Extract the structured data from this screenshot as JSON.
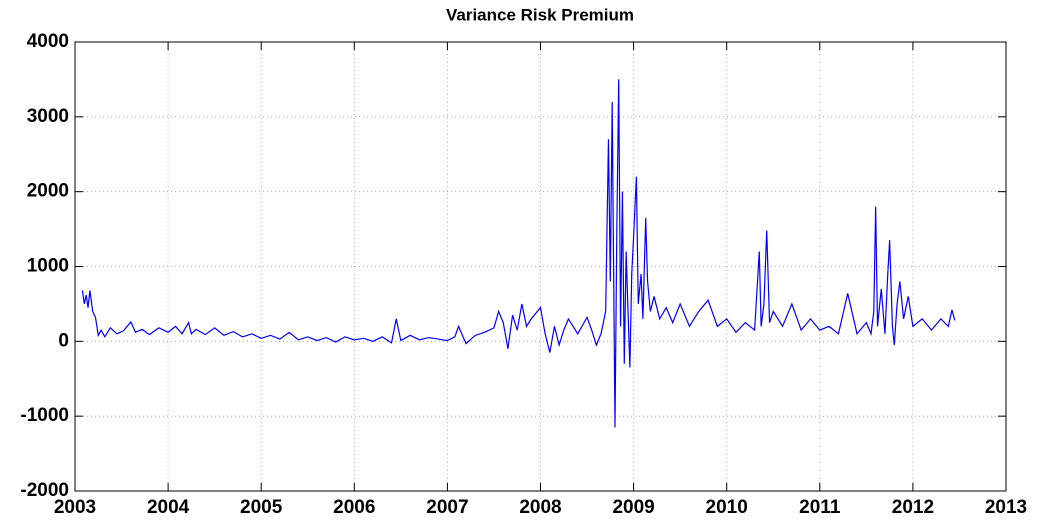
{
  "chart_data": {
    "type": "line",
    "title": "Variance Risk Premium",
    "x": [
      2003.08,
      2003.1,
      2003.12,
      2003.14,
      2003.16,
      2003.19,
      2003.22,
      2003.25,
      2003.28,
      2003.32,
      2003.38,
      2003.45,
      2003.52,
      2003.6,
      2003.65,
      2003.72,
      2003.8,
      2003.9,
      2004.0,
      2004.08,
      2004.15,
      2004.22,
      2004.25,
      2004.3,
      2004.4,
      2004.5,
      2004.6,
      2004.7,
      2004.8,
      2004.9,
      2005.0,
      2005.1,
      2005.2,
      2005.3,
      2005.4,
      2005.5,
      2005.6,
      2005.7,
      2005.8,
      2005.9,
      2006.0,
      2006.1,
      2006.2,
      2006.3,
      2006.4,
      2006.45,
      2006.5,
      2006.6,
      2006.7,
      2006.8,
      2006.9,
      2007.0,
      2007.08,
      2007.12,
      2007.2,
      2007.3,
      2007.4,
      2007.5,
      2007.55,
      2007.6,
      2007.65,
      2007.7,
      2007.75,
      2007.8,
      2007.85,
      2007.9,
      2008.0,
      2008.05,
      2008.1,
      2008.15,
      2008.2,
      2008.25,
      2008.3,
      2008.4,
      2008.5,
      2008.55,
      2008.6,
      2008.65,
      2008.7,
      2008.73,
      2008.75,
      2008.77,
      2008.79,
      2008.8,
      2008.82,
      2008.84,
      2008.86,
      2008.88,
      2008.9,
      2008.92,
      2008.94,
      2008.96,
      2008.98,
      2009.0,
      2009.03,
      2009.05,
      2009.08,
      2009.1,
      2009.13,
      2009.15,
      2009.18,
      2009.22,
      2009.28,
      2009.35,
      2009.42,
      2009.5,
      2009.6,
      2009.7,
      2009.8,
      2009.9,
      2010.0,
      2010.1,
      2010.2,
      2010.3,
      2010.35,
      2010.37,
      2010.4,
      2010.43,
      2010.46,
      2010.5,
      2010.6,
      2010.7,
      2010.8,
      2010.9,
      2011.0,
      2011.1,
      2011.2,
      2011.3,
      2011.4,
      2011.5,
      2011.55,
      2011.58,
      2011.6,
      2011.62,
      2011.66,
      2011.7,
      2011.73,
      2011.75,
      2011.78,
      2011.8,
      2011.83,
      2011.86,
      2011.9,
      2011.95,
      2012.0,
      2012.1,
      2012.2,
      2012.3,
      2012.38,
      2012.42,
      2012.45
    ],
    "series": [
      {
        "color": "#0000ff",
        "values": [
          680,
          500,
          620,
          450,
          680,
          400,
          320,
          80,
          150,
          60,
          180,
          100,
          140,
          260,
          120,
          160,
          90,
          180,
          120,
          200,
          100,
          250,
          100,
          160,
          90,
          180,
          80,
          130,
          60,
          100,
          40,
          80,
          30,
          120,
          20,
          60,
          10,
          50,
          -10,
          60,
          20,
          40,
          0,
          60,
          -20,
          300,
          10,
          80,
          20,
          50,
          30,
          10,
          60,
          200,
          -30,
          80,
          120,
          180,
          400,
          250,
          -100,
          350,
          150,
          500,
          200,
          300,
          450,
          100,
          -150,
          200,
          -50,
          150,
          300,
          100,
          320,
          150,
          -50,
          100,
          400,
          2700,
          800,
          3200,
          300,
          -1150,
          1500,
          3500,
          200,
          2000,
          -300,
          1200,
          400,
          -350,
          900,
          1400,
          2200,
          500,
          900,
          300,
          1650,
          800,
          400,
          600,
          300,
          450,
          250,
          500,
          200,
          400,
          550,
          200,
          300,
          120,
          250,
          150,
          1200,
          200,
          500,
          1480,
          250,
          400,
          200,
          500,
          150,
          300,
          150,
          200,
          100,
          640,
          100,
          250,
          100,
          400,
          1800,
          200,
          700,
          100,
          900,
          1350,
          200,
          -50,
          500,
          800,
          300,
          600,
          200,
          300,
          150,
          300,
          200,
          420,
          280
        ]
      }
    ],
    "xlim": [
      2003,
      2013
    ],
    "xticks": [
      2003,
      2004,
      2005,
      2006,
      2007,
      2008,
      2009,
      2010,
      2011,
      2012,
      2013
    ],
    "ylim": [
      -2000,
      4000
    ],
    "yticks": [
      -2000,
      -1000,
      0,
      1000,
      2000,
      3000,
      4000
    ],
    "grid": true
  }
}
